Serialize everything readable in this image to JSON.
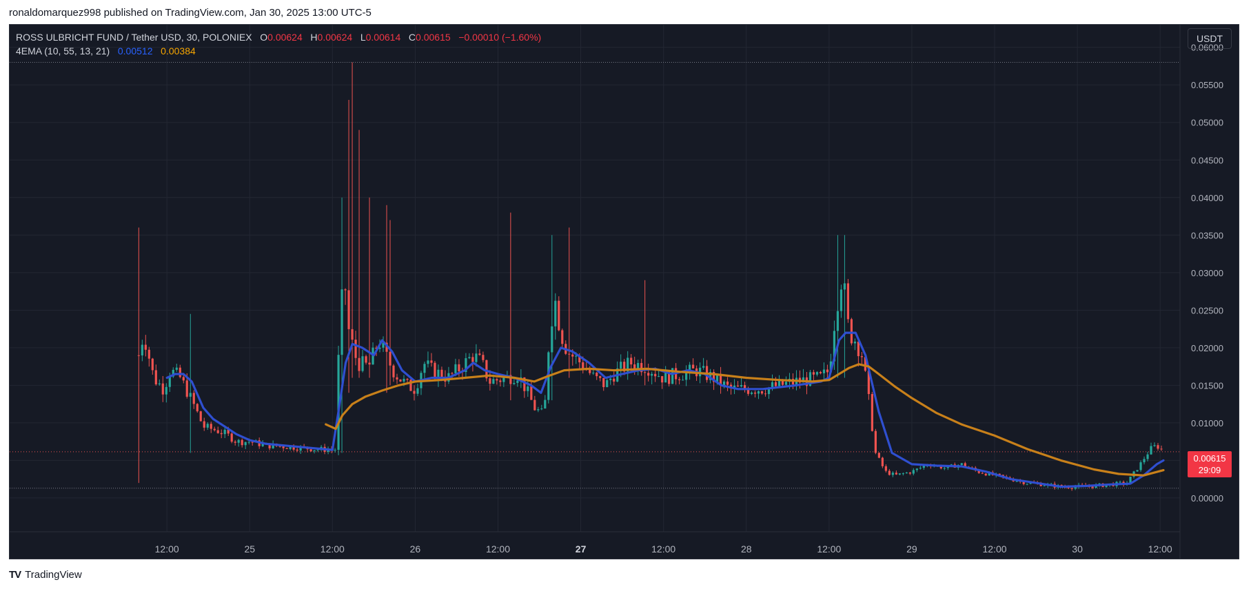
{
  "header": {
    "published_line": "ronaldomarquez998 published on TradingView.com, Jan 30, 2025 13:00 UTC-5"
  },
  "legend": {
    "symbol": "ROSS ULBRICHT FUND / Tether USD, 30, POLONIEX",
    "o_label": "O",
    "o_value": "0.00624",
    "h_label": "H",
    "h_value": "0.00624",
    "l_label": "L",
    "l_value": "0.00614",
    "c_label": "C",
    "c_value": "0.00615",
    "change": "−0.00010 (−1.60%)",
    "indicator_name": "4EMA (10, 55, 13, 21)",
    "ema_fast_value": "0.00512",
    "ema_slow_value": "0.00384"
  },
  "currency_button": "USDT",
  "price_tag": {
    "price": "0.00615",
    "countdown": "29:09"
  },
  "footer": {
    "brand": "TradingView"
  },
  "colors": {
    "background": "#161a25",
    "grid": "#232733",
    "up": "#26a69a",
    "down": "#ef5350",
    "ema_fast": "#2f4fd0",
    "ema_slow": "#c8801a",
    "axis_text": "#b2b5be"
  },
  "chart_data": {
    "type": "candlestick",
    "title": "",
    "y_ticks": [
      "0.00000",
      "0.00500",
      "0.01000",
      "0.01500",
      "0.02000",
      "0.02500",
      "0.03000",
      "0.03500",
      "0.04000",
      "0.04500",
      "0.05000",
      "0.05500",
      "0.06000"
    ],
    "ylim": [
      -0.0045,
      0.063
    ],
    "x_ticks": [
      {
        "label": "12:00",
        "t": 0.5,
        "bold": false
      },
      {
        "label": "25",
        "t": 1.0,
        "bold": false
      },
      {
        "label": "12:00",
        "t": 1.5,
        "bold": false
      },
      {
        "label": "26",
        "t": 2.0,
        "bold": false
      },
      {
        "label": "12:00",
        "t": 2.5,
        "bold": false
      },
      {
        "label": "27",
        "t": 3.0,
        "bold": true
      },
      {
        "label": "12:00",
        "t": 3.5,
        "bold": false
      },
      {
        "label": "28",
        "t": 4.0,
        "bold": false
      },
      {
        "label": "12:00",
        "t": 4.5,
        "bold": false
      },
      {
        "label": "29",
        "t": 5.0,
        "bold": false
      },
      {
        "label": "12:00",
        "t": 5.5,
        "bold": false
      },
      {
        "label": "30",
        "t": 6.0,
        "bold": false
      },
      {
        "label": "12:00",
        "t": 6.5,
        "bold": false
      }
    ],
    "xlim": [
      -0.45,
      6.62
    ],
    "high_line": 0.058,
    "low_line": 0.0013,
    "last_price": 0.00615,
    "price_keyframes": [
      [
        0.33,
        0.019
      ],
      [
        0.36,
        0.022
      ],
      [
        0.42,
        0.016
      ],
      [
        0.48,
        0.0145
      ],
      [
        0.52,
        0.017
      ],
      [
        0.58,
        0.016
      ],
      [
        0.65,
        0.013
      ],
      [
        0.72,
        0.0095
      ],
      [
        0.8,
        0.009
      ],
      [
        0.86,
        0.0085
      ],
      [
        0.92,
        0.0075
      ],
      [
        1.0,
        0.0075
      ],
      [
        1.1,
        0.007
      ],
      [
        1.25,
        0.0068
      ],
      [
        1.4,
        0.0065
      ],
      [
        1.5,
        0.0064
      ],
      [
        1.52,
        0.0065
      ],
      [
        1.54,
        0.021
      ],
      [
        1.57,
        0.03
      ],
      [
        1.6,
        0.022
      ],
      [
        1.65,
        0.018
      ],
      [
        1.72,
        0.0175
      ],
      [
        1.78,
        0.021
      ],
      [
        1.82,
        0.019
      ],
      [
        1.88,
        0.0165
      ],
      [
        1.95,
        0.015
      ],
      [
        2.0,
        0.0145
      ],
      [
        2.05,
        0.018
      ],
      [
        2.1,
        0.017
      ],
      [
        2.2,
        0.016
      ],
      [
        2.28,
        0.0175
      ],
      [
        2.35,
        0.019
      ],
      [
        2.4,
        0.018
      ],
      [
        2.45,
        0.0155
      ],
      [
        2.55,
        0.016
      ],
      [
        2.62,
        0.0165
      ],
      [
        2.68,
        0.014
      ],
      [
        2.72,
        0.012
      ],
      [
        2.78,
        0.011
      ],
      [
        2.8,
        0.019
      ],
      [
        2.84,
        0.027
      ],
      [
        2.88,
        0.022
      ],
      [
        2.92,
        0.0195
      ],
      [
        3.0,
        0.018
      ],
      [
        3.08,
        0.016
      ],
      [
        3.15,
        0.015
      ],
      [
        3.2,
        0.0165
      ],
      [
        3.3,
        0.018
      ],
      [
        3.4,
        0.0175
      ],
      [
        3.5,
        0.016
      ],
      [
        3.6,
        0.0165
      ],
      [
        3.7,
        0.017
      ],
      [
        3.8,
        0.016
      ],
      [
        3.9,
        0.0145
      ],
      [
        4.0,
        0.0145
      ],
      [
        4.1,
        0.0145
      ],
      [
        4.2,
        0.015
      ],
      [
        4.3,
        0.0155
      ],
      [
        4.45,
        0.016
      ],
      [
        4.5,
        0.017
      ],
      [
        4.54,
        0.025
      ],
      [
        4.58,
        0.03
      ],
      [
        4.62,
        0.022
      ],
      [
        4.66,
        0.021
      ],
      [
        4.7,
        0.019
      ],
      [
        4.74,
        0.013
      ],
      [
        4.78,
        0.006
      ],
      [
        4.84,
        0.0035
      ],
      [
        4.9,
        0.003
      ],
      [
        5.0,
        0.0035
      ],
      [
        5.1,
        0.0045
      ],
      [
        5.2,
        0.004
      ],
      [
        5.3,
        0.0045
      ],
      [
        5.4,
        0.0035
      ],
      [
        5.5,
        0.003
      ],
      [
        5.6,
        0.0025
      ],
      [
        5.7,
        0.002
      ],
      [
        5.8,
        0.0018
      ],
      [
        5.9,
        0.0015
      ],
      [
        6.0,
        0.0015
      ],
      [
        6.1,
        0.0016
      ],
      [
        6.2,
        0.0018
      ],
      [
        6.3,
        0.002
      ],
      [
        6.38,
        0.0045
      ],
      [
        6.44,
        0.0065
      ],
      [
        6.48,
        0.007
      ],
      [
        6.52,
        0.0062
      ]
    ],
    "candle_step": 0.0208,
    "candle_start": 0.33,
    "candle_end": 6.52,
    "spikes": [
      {
        "t": 0.33,
        "high": 0.036,
        "low": 0.002
      },
      {
        "t": 0.65,
        "high": 0.0245,
        "low": 0.006
      },
      {
        "t": 1.56,
        "high": 0.04,
        "low": 0.006
      },
      {
        "t": 1.6,
        "high": 0.053,
        "low": 0.014
      },
      {
        "t": 1.63,
        "high": 0.058,
        "low": 0.016
      },
      {
        "t": 1.66,
        "high": 0.049,
        "low": 0.016
      },
      {
        "t": 1.72,
        "high": 0.04,
        "low": 0.016
      },
      {
        "t": 1.84,
        "high": 0.039,
        "low": 0.014
      },
      {
        "t": 1.86,
        "high": 0.037,
        "low": 0.015
      },
      {
        "t": 2.58,
        "high": 0.038,
        "low": 0.013
      },
      {
        "t": 2.82,
        "high": 0.035,
        "low": 0.013
      },
      {
        "t": 2.94,
        "high": 0.036,
        "low": 0.016
      },
      {
        "t": 3.38,
        "high": 0.029,
        "low": 0.015
      },
      {
        "t": 4.55,
        "high": 0.035,
        "low": 0.016
      },
      {
        "t": 4.6,
        "high": 0.035,
        "low": 0.016
      }
    ],
    "series": [
      {
        "name": "4EMA (10, 55, 13, 21)",
        "color": "#2f4fd0",
        "points": [
          [
            0.5,
            0.016
          ],
          [
            0.55,
            0.0165
          ],
          [
            0.6,
            0.0165
          ],
          [
            0.65,
            0.0155
          ],
          [
            0.72,
            0.012
          ],
          [
            0.78,
            0.0105
          ],
          [
            0.85,
            0.0095
          ],
          [
            0.92,
            0.0085
          ],
          [
            1.0,
            0.0077
          ],
          [
            1.1,
            0.0072
          ],
          [
            1.25,
            0.0069
          ],
          [
            1.4,
            0.0066
          ],
          [
            1.5,
            0.0064
          ],
          [
            1.54,
            0.012
          ],
          [
            1.58,
            0.018
          ],
          [
            1.62,
            0.0205
          ],
          [
            1.68,
            0.02
          ],
          [
            1.75,
            0.019
          ],
          [
            1.8,
            0.021
          ],
          [
            1.86,
            0.0195
          ],
          [
            1.92,
            0.017
          ],
          [
            2.0,
            0.0155
          ],
          [
            2.1,
            0.016
          ],
          [
            2.2,
            0.016
          ],
          [
            2.3,
            0.017
          ],
          [
            2.35,
            0.018
          ],
          [
            2.42,
            0.017
          ],
          [
            2.5,
            0.0165
          ],
          [
            2.6,
            0.016
          ],
          [
            2.7,
            0.015
          ],
          [
            2.76,
            0.014
          ],
          [
            2.82,
            0.0175
          ],
          [
            2.88,
            0.02
          ],
          [
            2.95,
            0.0195
          ],
          [
            3.05,
            0.018
          ],
          [
            3.15,
            0.016
          ],
          [
            3.25,
            0.0165
          ],
          [
            3.35,
            0.017
          ],
          [
            3.45,
            0.0172
          ],
          [
            3.55,
            0.0165
          ],
          [
            3.65,
            0.017
          ],
          [
            3.75,
            0.0165
          ],
          [
            3.85,
            0.015
          ],
          [
            3.95,
            0.0145
          ],
          [
            4.1,
            0.0145
          ],
          [
            4.3,
            0.015
          ],
          [
            4.45,
            0.0155
          ],
          [
            4.5,
            0.016
          ],
          [
            4.56,
            0.021
          ],
          [
            4.6,
            0.022
          ],
          [
            4.66,
            0.022
          ],
          [
            4.72,
            0.019
          ],
          [
            4.8,
            0.0115
          ],
          [
            4.88,
            0.006
          ],
          [
            5.0,
            0.0045
          ],
          [
            5.15,
            0.0043
          ],
          [
            5.3,
            0.0042
          ],
          [
            5.45,
            0.0035
          ],
          [
            5.6,
            0.0025
          ],
          [
            5.75,
            0.002
          ],
          [
            5.9,
            0.0015
          ],
          [
            6.05,
            0.0016
          ],
          [
            6.2,
            0.0018
          ],
          [
            6.32,
            0.0019
          ],
          [
            6.4,
            0.003
          ],
          [
            6.48,
            0.0045
          ],
          [
            6.52,
            0.005
          ]
        ]
      },
      {
        "name": "",
        "color": "#c8801a",
        "points": [
          [
            1.46,
            0.0098
          ],
          [
            1.52,
            0.0092
          ],
          [
            1.56,
            0.011
          ],
          [
            1.62,
            0.0125
          ],
          [
            1.7,
            0.0135
          ],
          [
            1.8,
            0.0143
          ],
          [
            1.9,
            0.015
          ],
          [
            2.0,
            0.0155
          ],
          [
            2.15,
            0.0157
          ],
          [
            2.3,
            0.016
          ],
          [
            2.45,
            0.0163
          ],
          [
            2.6,
            0.016
          ],
          [
            2.72,
            0.0155
          ],
          [
            2.8,
            0.0162
          ],
          [
            2.9,
            0.017
          ],
          [
            3.05,
            0.0172
          ],
          [
            3.2,
            0.017
          ],
          [
            3.4,
            0.0172
          ],
          [
            3.6,
            0.0168
          ],
          [
            3.8,
            0.0165
          ],
          [
            4.0,
            0.016
          ],
          [
            4.2,
            0.0157
          ],
          [
            4.4,
            0.0155
          ],
          [
            4.5,
            0.0157
          ],
          [
            4.56,
            0.0165
          ],
          [
            4.62,
            0.0173
          ],
          [
            4.68,
            0.0178
          ],
          [
            4.74,
            0.0175
          ],
          [
            4.8,
            0.0165
          ],
          [
            4.9,
            0.0148
          ],
          [
            5.0,
            0.0133
          ],
          [
            5.15,
            0.0113
          ],
          [
            5.3,
            0.0098
          ],
          [
            5.5,
            0.0083
          ],
          [
            5.7,
            0.0065
          ],
          [
            5.9,
            0.005
          ],
          [
            6.1,
            0.0038
          ],
          [
            6.25,
            0.0032
          ],
          [
            6.4,
            0.003
          ],
          [
            6.52,
            0.0037
          ]
        ]
      }
    ]
  }
}
